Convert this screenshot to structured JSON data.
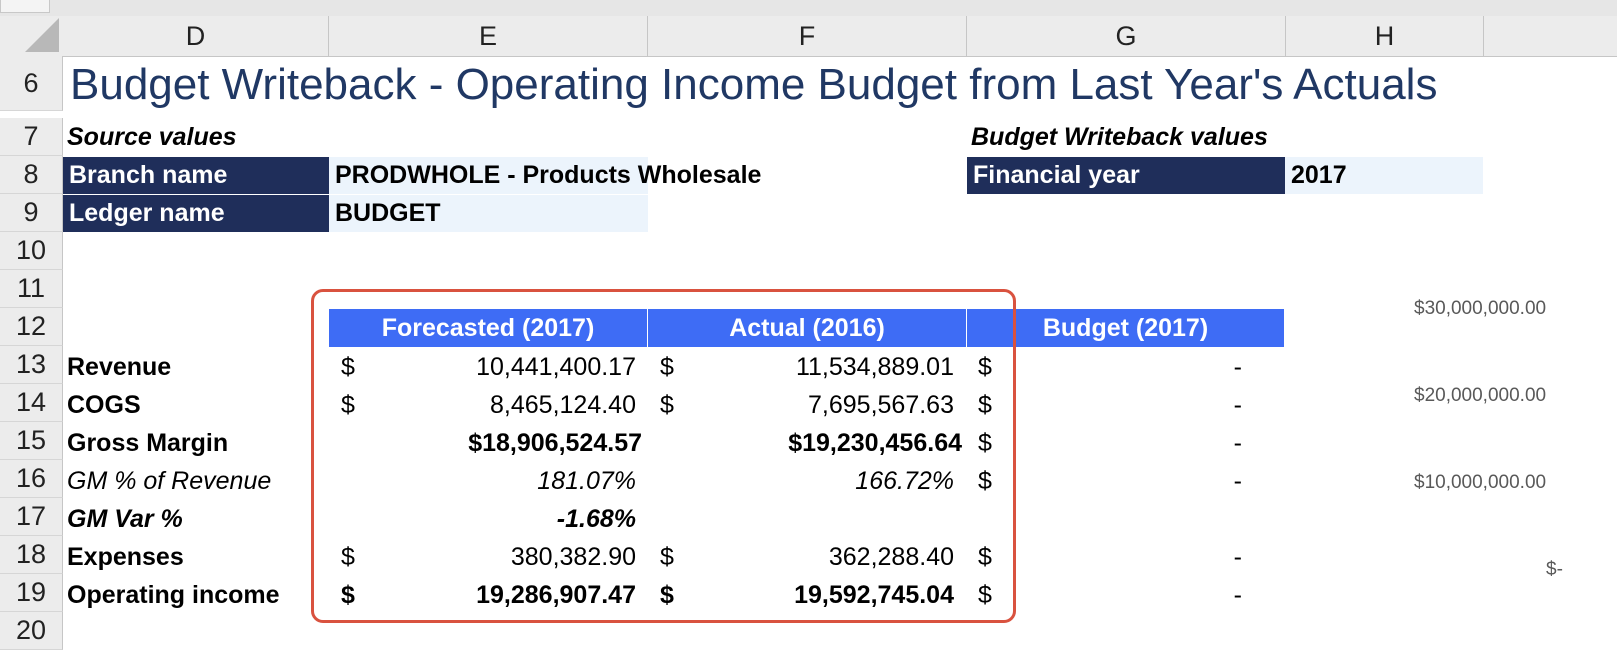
{
  "columns": [
    "D",
    "E",
    "F",
    "G",
    "H"
  ],
  "rows": [
    "6",
    "7",
    "8",
    "9",
    "10",
    "11",
    "12",
    "13",
    "14",
    "15",
    "16",
    "17",
    "18",
    "19",
    "20"
  ],
  "title": "Budget Writeback - Operating Income Budget from Last Year's Actuals",
  "source_heading": "Source values",
  "writeback_heading": "Budget Writeback values",
  "branch_label": "Branch name",
  "branch_value": "PRODWHOLE - Products Wholesale",
  "ledger_label": "Ledger name",
  "ledger_value": "BUDGET",
  "fy_label": "Financial year",
  "fy_value": "2017",
  "table": {
    "headers": [
      "Forecasted (2017)",
      "Actual (2016)",
      "Budget (2017)"
    ],
    "currency": "$",
    "rows": [
      {
        "label": "Revenue",
        "forecast": "10,441,400.17",
        "actual": "11,534,889.01",
        "budget": "-"
      },
      {
        "label": "COGS",
        "forecast": "8,465,124.40",
        "actual": "7,695,567.63",
        "budget": "-"
      },
      {
        "label": "Gross Margin",
        "forecast": "$18,906,524.57",
        "actual": "$19,230,456.64",
        "budget": "-"
      },
      {
        "label": "GM % of Revenue",
        "forecast": "181.07%",
        "actual": "166.72%",
        "budget": "-"
      },
      {
        "label": "GM Var %",
        "forecast": "-1.68%"
      },
      {
        "label": "Expenses",
        "forecast": "380,382.90",
        "actual": "362,288.40",
        "budget": "-"
      },
      {
        "label": "Operating income",
        "forecast": "19,286,907.47",
        "actual": "19,592,745.04",
        "budget": "-"
      }
    ]
  },
  "axis_labels": [
    "$30,000,000.00",
    "$20,000,000.00",
    "$10,000,000.00",
    "$-"
  ],
  "colors": {
    "navy": "#1f2e5a",
    "blue_header": "#3e6cf5",
    "pale": "#ecf4fc",
    "title": "#203864",
    "highlight_box": "#d9523f"
  }
}
